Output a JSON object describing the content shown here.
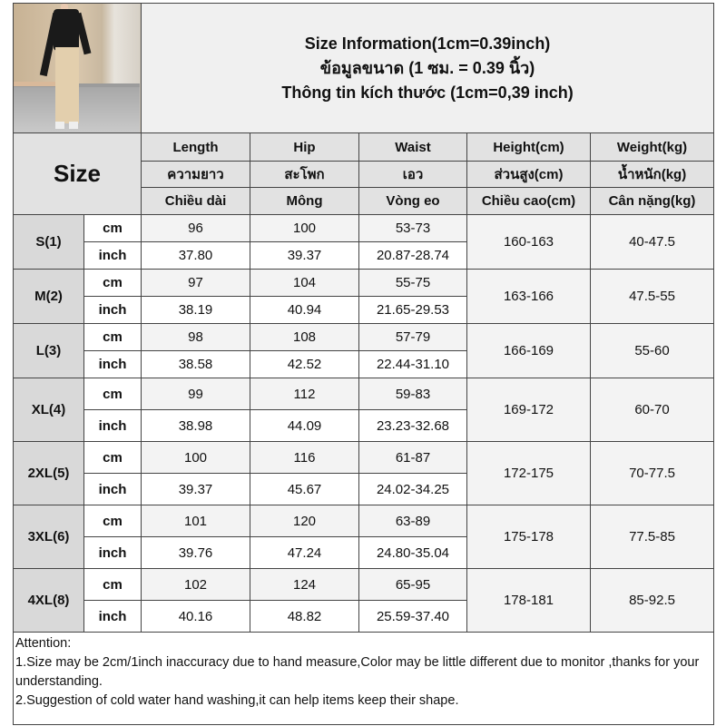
{
  "title": {
    "lines": [
      "Size Information(1cm=0.39inch)",
      "ข้อมูลขนาด (1 ซม. = 0.39 นิ้ว)",
      "Thông tin kích thước (1cm=0,39 inch)"
    ]
  },
  "header": {
    "size_label": "Size",
    "columns": [
      [
        "Length",
        "ความยาว",
        "Chiều dài"
      ],
      [
        "Hip",
        "สะโพก",
        "Mông"
      ],
      [
        "Waist",
        "เอว",
        "Vòng eo"
      ],
      [
        "Height(cm)",
        "ส่วนสูง(cm)",
        "Chiều cao(cm)"
      ],
      [
        "Weight(kg)",
        "น้ำหนัก(kg)",
        "Cân nặng(kg)"
      ]
    ]
  },
  "units": {
    "cm": "cm",
    "inch": "inch"
  },
  "rows": [
    {
      "size": "S(1)",
      "cm": [
        "96",
        "100",
        "53-73"
      ],
      "inch": [
        "37.80",
        "39.37",
        "20.87-28.74"
      ],
      "height": "160-163",
      "weight": "40-47.5"
    },
    {
      "size": "M(2)",
      "cm": [
        "97",
        "104",
        "55-75"
      ],
      "inch": [
        "38.19",
        "40.94",
        "21.65-29.53"
      ],
      "height": "163-166",
      "weight": "47.5-55"
    },
    {
      "size": "L(3)",
      "cm": [
        "98",
        "108",
        "57-79"
      ],
      "inch": [
        "38.58",
        "42.52",
        "22.44-31.10"
      ],
      "height": "166-169",
      "weight": "55-60"
    },
    {
      "size": "XL(4)",
      "cm": [
        "99",
        "112",
        "59-83"
      ],
      "inch": [
        "38.98",
        "44.09",
        "23.23-32.68"
      ],
      "height": "169-172",
      "weight": "60-70"
    },
    {
      "size": "2XL(5)",
      "cm": [
        "100",
        "116",
        "61-87"
      ],
      "inch": [
        "39.37",
        "45.67",
        "24.02-34.25"
      ],
      "height": "172-175",
      "weight": "70-77.5"
    },
    {
      "size": "3XL(6)",
      "cm": [
        "101",
        "120",
        "63-89"
      ],
      "inch": [
        "39.76",
        "47.24",
        "24.80-35.04"
      ],
      "height": "175-178",
      "weight": "77.5-85"
    },
    {
      "size": "4XL(8)",
      "cm": [
        "102",
        "124",
        "65-95"
      ],
      "inch": [
        "40.16",
        "48.82",
        "25.59-37.40"
      ],
      "height": "178-181",
      "weight": "85-92.5"
    }
  ],
  "attention": {
    "heading": "Attention:",
    "notes": [
      "1.Size may be 2cm/1inch inaccuracy due to hand measure,Color may be little different due to monitor ,thanks for your understanding.",
      "2.Suggestion of cold water hand washing,it can help items keep their shape."
    ]
  },
  "colors": {
    "header_bg": "#e2e2e2",
    "size_bg": "#d9d9d9",
    "cm_row_bg": "#f3f3f3",
    "title_bg": "#f0f0f0"
  }
}
